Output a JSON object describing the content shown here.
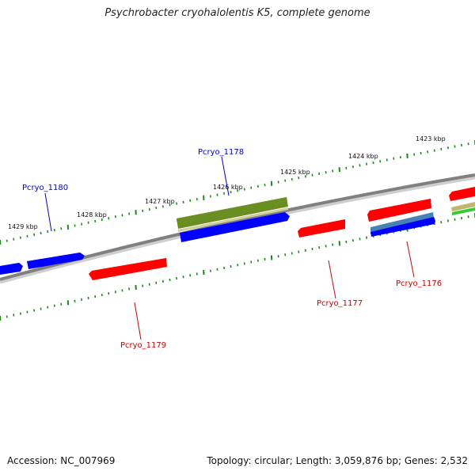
{
  "title": "Psychrobacter cryohalolentis K5, complete genome",
  "footer": {
    "accession": "Accession: NC_007969",
    "topology": "Topology: circular; Length: 3,059,876 bp; Genes: 2,532"
  },
  "colors": {
    "background": "#ffffff",
    "backbone": "#808080",
    "tick": "#1a8a1a",
    "forward_gene": "#0000ff",
    "reverse_gene": "#ff0000",
    "rna_gene": "#6b8e23",
    "misc_blue": "#4682b4",
    "misc_tan": "#bdb76b",
    "misc_green": "#32cd32",
    "label_forward": "#0000cc",
    "label_reverse": "#cc0000"
  },
  "kbp_labels": [
    "1429 kbp",
    "1428 kbp",
    "1427 kbp",
    "1426 kbp",
    "1425 kbp",
    "1424 kbp",
    "1423 kbp"
  ],
  "genes": [
    {
      "id": "g-fwd-left-stub",
      "strand": "forward",
      "type": "CDS",
      "label": ""
    },
    {
      "id": "g-pcryo1180",
      "strand": "forward",
      "type": "CDS",
      "label": "Pcryo_1180"
    },
    {
      "id": "g-pcryo1179",
      "strand": "reverse",
      "type": "CDS",
      "label": "Pcryo_1179"
    },
    {
      "id": "g-pcryo1178",
      "strand": "forward",
      "type": "CDS",
      "label": "Pcryo_1178"
    },
    {
      "id": "g-rna-olive",
      "strand": "forward",
      "type": "RNA",
      "label": ""
    },
    {
      "id": "g-pcryo1177",
      "strand": "reverse",
      "type": "CDS",
      "label": "Pcryo_1177"
    },
    {
      "id": "g-pcryo1176",
      "strand": "reverse",
      "type": "CDS",
      "label": "Pcryo_1176"
    },
    {
      "id": "g-misc-blue",
      "strand": "forward",
      "type": "misc",
      "label": ""
    },
    {
      "id": "g-fwd-right",
      "strand": "forward",
      "type": "CDS",
      "label": ""
    },
    {
      "id": "g-rev-right-edge",
      "strand": "reverse",
      "type": "CDS",
      "label": ""
    },
    {
      "id": "g-misc-tan",
      "strand": "forward",
      "type": "misc",
      "label": ""
    },
    {
      "id": "g-misc-green",
      "strand": "forward",
      "type": "misc",
      "label": ""
    }
  ]
}
